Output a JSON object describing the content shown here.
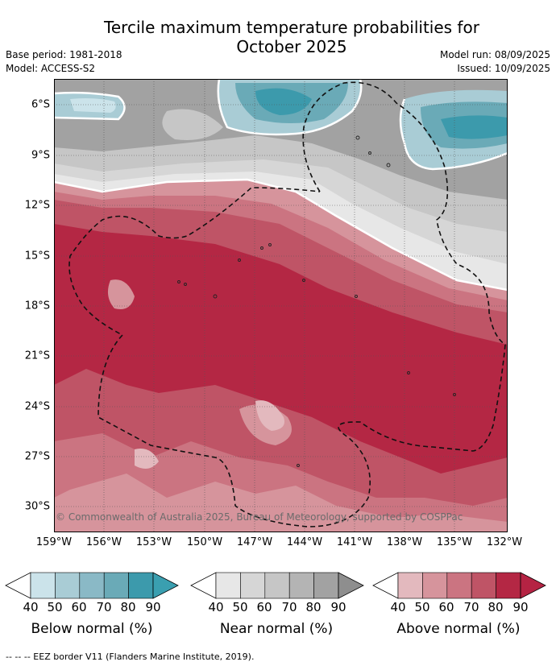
{
  "header": {
    "title_line1": "Tercile maximum temperature probabilities for",
    "title_line2": "October 2025",
    "base_period": "Base period: 1981-2018",
    "model": "Model: ACCESS-S2",
    "model_run": "Model run: 08/09/2025",
    "issued": "Issued: 10/09/2025"
  },
  "map": {
    "lat_labels": [
      "6°S",
      "9°S",
      "12°S",
      "15°S",
      "18°S",
      "21°S",
      "24°S",
      "27°S",
      "30°S"
    ],
    "lon_labels": [
      "159°W",
      "156°W",
      "153°W",
      "150°W",
      "147°W",
      "144°W",
      "141°W",
      "138°W",
      "135°W",
      "132°W"
    ],
    "copyright": "© Commonwealth of Australia 2025, Bureau of Meteorology, supported by COSPPac"
  },
  "colorbars": [
    {
      "label": "Below normal (%)",
      "ticks": [
        "40",
        "50",
        "60",
        "70",
        "80",
        "90"
      ],
      "colors": [
        "#cbe3ea",
        "#a9ccd5",
        "#8ab9c6",
        "#6aaab7",
        "#3c9aac",
        "#3a9fb0"
      ]
    },
    {
      "label": "Near normal (%)",
      "ticks": [
        "40",
        "50",
        "60",
        "70",
        "80",
        "90"
      ],
      "colors": [
        "#e7e7e7",
        "#d6d6d6",
        "#c6c6c6",
        "#b4b4b4",
        "#a2a2a2",
        "#8e8e8e"
      ]
    },
    {
      "label": "Above normal (%)",
      "ticks": [
        "40",
        "50",
        "60",
        "70",
        "80",
        "90"
      ],
      "colors": [
        "#e3b9be",
        "#d6949c",
        "#cb7481",
        "#bf5466",
        "#b42744",
        "#b52343"
      ]
    }
  ],
  "footer": "--  --  -- EEZ border V11 (Flanders Marine Institute, 2019)."
}
